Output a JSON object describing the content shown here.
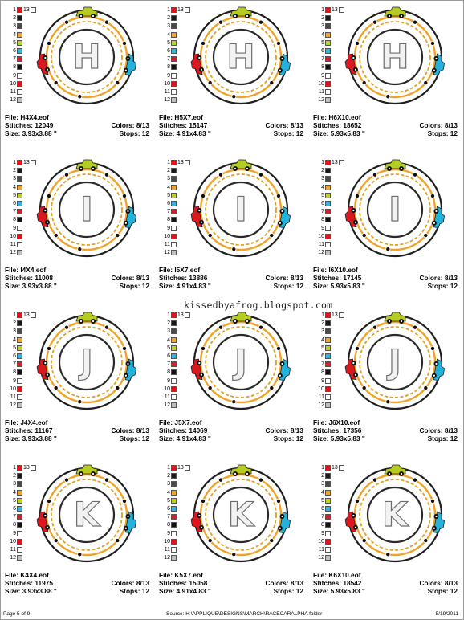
{
  "thread_colors": [
    {
      "num": "1",
      "color": "#e0141b"
    },
    {
      "num": "2",
      "color": "#1a1a1a"
    },
    {
      "num": "3",
      "color": "#4a4a4a"
    },
    {
      "num": "4",
      "color": "#f0a326"
    },
    {
      "num": "5",
      "color": "#b9cf2a"
    },
    {
      "num": "6",
      "color": "#2bb6dc"
    },
    {
      "num": "7",
      "color": "#d61f26"
    },
    {
      "num": "8",
      "color": "#111111"
    },
    {
      "num": "9",
      "color": "#ffffff"
    },
    {
      "num": "10",
      "color": "#e0141b"
    },
    {
      "num": "11",
      "color": "#ffffff"
    },
    {
      "num": "12",
      "color": "#bfbfbf"
    }
  ],
  "swatch_extra_label": "13",
  "designs": [
    {
      "letter": "H",
      "file": "File: H4X4.eof",
      "stitches": "Stitches: 12049",
      "size": "Size: 3.93x3.88 \"",
      "colors": "Colors: 8/13",
      "stops": "Stops: 12"
    },
    {
      "letter": "H",
      "file": "File: H5X7.eof",
      "stitches": "Stitches: 15147",
      "size": "Size: 4.91x4.83 \"",
      "colors": "Colors: 8/13",
      "stops": "Stops: 12"
    },
    {
      "letter": "H",
      "file": "File: H6X10.eof",
      "stitches": "Stitches: 18652",
      "size": "Size: 5.93x5.83 \"",
      "colors": "Colors: 8/13",
      "stops": "Stops: 12"
    },
    {
      "letter": "I",
      "file": "File: I4X4.eof",
      "stitches": "Stitches: 11008",
      "size": "Size: 3.93x3.88 \"",
      "colors": "Colors: 8/13",
      "stops": "Stops: 12"
    },
    {
      "letter": "I",
      "file": "File: I5X7.eof",
      "stitches": "Stitches: 13886",
      "size": "Size: 4.91x4.83 \"",
      "colors": "Colors: 8/13",
      "stops": "Stops: 12"
    },
    {
      "letter": "I",
      "file": "File: I6X10.eof",
      "stitches": "Stitches: 17145",
      "size": "Size: 5.93x5.83 \"",
      "colors": "Colors: 8/13",
      "stops": "Stops: 12"
    },
    {
      "letter": "J",
      "file": "File: J4X4.eof",
      "stitches": "Stitches: 11167",
      "size": "Size: 3.93x3.88 \"",
      "colors": "Colors: 8/13",
      "stops": "Stops: 12"
    },
    {
      "letter": "J",
      "file": "File: J5X7.eof",
      "stitches": "Stitches: 14069",
      "size": "Size: 4.91x4.83 \"",
      "colors": "Colors: 8/13",
      "stops": "Stops: 12"
    },
    {
      "letter": "J",
      "file": "File: J6X10.eof",
      "stitches": "Stitches: 17356",
      "size": "Size: 5.93x5.83 \"",
      "colors": "Colors: 8/13",
      "stops": "Stops: 12"
    },
    {
      "letter": "K",
      "file": "File: K4X4.eof",
      "stitches": "Stitches: 11975",
      "size": "Size: 3.93x3.88 \"",
      "colors": "Colors: 8/13",
      "stops": "Stops: 12"
    },
    {
      "letter": "K",
      "file": "File: K5X7.eof",
      "stitches": "Stitches: 15058",
      "size": "Size: 4.91x4.83 \"",
      "colors": "Colors: 8/13",
      "stops": "Stops: 12"
    },
    {
      "letter": "K",
      "file": "File: K6X10.eof",
      "stitches": "Stitches: 18542",
      "size": "Size: 5.93x5.83 \"",
      "colors": "Colors: 8/13",
      "stops": "Stops: 12"
    }
  ],
  "watermark": "kissedbyafrog.blogspot.com",
  "footer": {
    "page": "Page 5 of 9",
    "source": "Source: H:\\APPLIQUE\\DESIGNS\\MARCH\\RACECARALPHA folder",
    "date": "5/19/2011"
  },
  "design_colors": {
    "track_outer": "#1f1f1f",
    "track_ring": "#f0a326",
    "dash": "#e0a020",
    "inner_ring": "#2a2a2a",
    "letter_fill": "#f2f2f2",
    "letter_stroke": "#6e6e6e",
    "car_green": "#b7cc22",
    "car_blue": "#22b3dc",
    "car_red": "#d9191f"
  }
}
